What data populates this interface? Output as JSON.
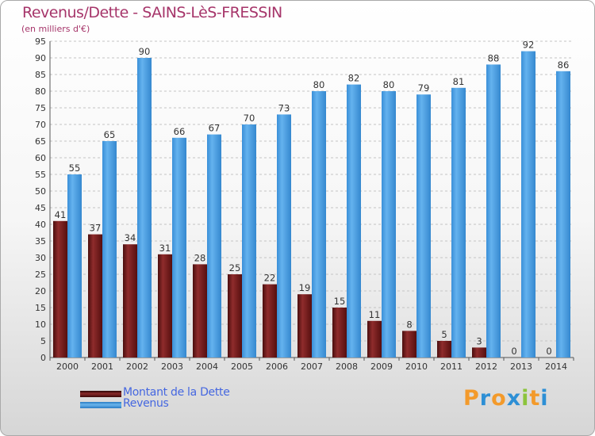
{
  "chart_data": {
    "type": "bar",
    "title": "Revenus/Dette - SAINS-LèS-FRESSIN",
    "subtitle": "(en milliers d'€)",
    "categories": [
      "2000",
      "2001",
      "2002",
      "2003",
      "2004",
      "2005",
      "2006",
      "2007",
      "2008",
      "2009",
      "2010",
      "2011",
      "2012",
      "2013",
      "2014"
    ],
    "series": [
      {
        "name": "Montant de la Dette",
        "color": "#7a1f1f",
        "values": [
          41,
          37,
          34,
          31,
          28,
          25,
          22,
          19,
          15,
          11,
          8,
          5,
          3,
          0,
          0
        ]
      },
      {
        "name": "Revenus",
        "color": "#4a9ee0",
        "values": [
          55,
          65,
          90,
          66,
          67,
          70,
          73,
          80,
          82,
          80,
          79,
          81,
          88,
          92,
          86
        ]
      }
    ],
    "ylim": [
      0,
      95
    ],
    "ytick_step": 5,
    "xlabel": "",
    "ylabel": "",
    "grid": true,
    "legend": "bottom-left"
  },
  "legend": {
    "debt_label": "Montant de la Dette",
    "revenue_label": "Revenus"
  },
  "logo": {
    "letters": [
      "P",
      "r",
      "o",
      "x",
      "i",
      "t",
      "i"
    ],
    "colors": [
      "#f39a2b",
      "#2d8fd5",
      "#f39a2b",
      "#2d8fd5",
      "#8cc43c",
      "#f39a2b",
      "#2d8fd5"
    ]
  }
}
